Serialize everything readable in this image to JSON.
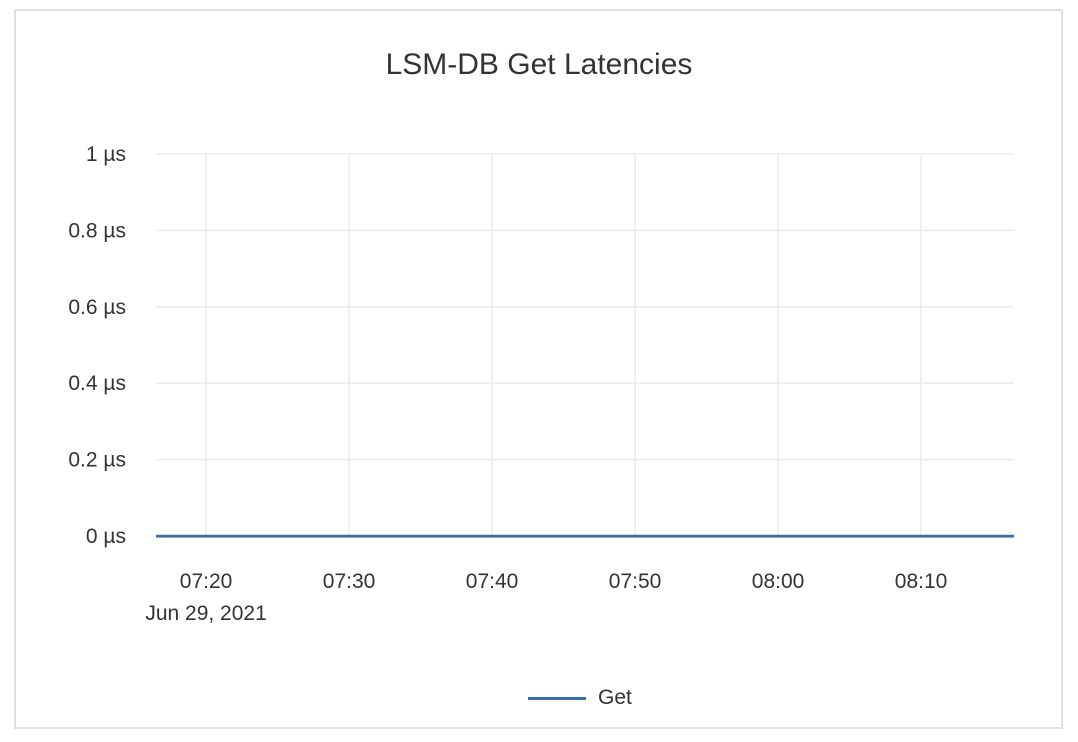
{
  "chart_data": {
    "type": "line",
    "title": "LSM-DB Get Latencies",
    "xlabel": "",
    "ylabel": "",
    "x_date_label": "Jun 29, 2021",
    "xlim": [
      "07:16:30",
      "08:16:30"
    ],
    "x_ticks": [
      "07:20",
      "07:30",
      "07:40",
      "07:50",
      "08:00",
      "08:10"
    ],
    "ylim": [
      0,
      1
    ],
    "y_ticks": [
      0,
      0.2,
      0.4,
      0.6,
      0.8,
      1
    ],
    "y_tick_labels": [
      "0 µs",
      "0.2 µs",
      "0.4 µs",
      "0.6 µs",
      "0.8 µs",
      "1 µs"
    ],
    "grid": true,
    "legend": "bottom",
    "series": [
      {
        "name": "Get",
        "color": "#3a6ea8",
        "x": [
          "07:16:30",
          "08:16:30"
        ],
        "y": [
          0,
          0
        ]
      }
    ]
  }
}
